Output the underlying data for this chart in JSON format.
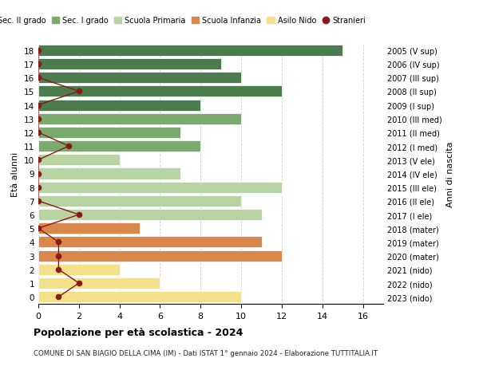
{
  "ages": [
    18,
    17,
    16,
    15,
    14,
    13,
    12,
    11,
    10,
    9,
    8,
    7,
    6,
    5,
    4,
    3,
    2,
    1,
    0
  ],
  "right_labels": [
    "2005 (V sup)",
    "2006 (IV sup)",
    "2007 (III sup)",
    "2008 (II sup)",
    "2009 (I sup)",
    "2010 (III med)",
    "2011 (II med)",
    "2012 (I med)",
    "2013 (V ele)",
    "2014 (IV ele)",
    "2015 (III ele)",
    "2016 (II ele)",
    "2017 (I ele)",
    "2018 (mater)",
    "2019 (mater)",
    "2020 (mater)",
    "2021 (nido)",
    "2022 (nido)",
    "2023 (nido)"
  ],
  "bar_values": [
    15,
    9,
    10,
    12,
    8,
    10,
    7,
    8,
    4,
    7,
    12,
    10,
    11,
    5,
    11,
    12,
    4,
    6,
    10
  ],
  "bar_colors": [
    "#4a7c4e",
    "#4a7c4e",
    "#4a7c4e",
    "#4a7c4e",
    "#4a7c4e",
    "#7aab6e",
    "#7aab6e",
    "#7aab6e",
    "#b8d4a0",
    "#b8d4a0",
    "#b8d4a0",
    "#b8d4a0",
    "#b8d4a0",
    "#d9874a",
    "#d9874a",
    "#d9874a",
    "#f5e08a",
    "#f5e08a",
    "#f5e08a"
  ],
  "stranieri_values": [
    0,
    0,
    0,
    2,
    0,
    0,
    0,
    1.5,
    0,
    0,
    0,
    0,
    2,
    0,
    1,
    1,
    1,
    2,
    1
  ],
  "stranieri_color": "#8b1a1a",
  "legend_items": [
    {
      "label": "Sec. II grado",
      "color": "#4a7c4e"
    },
    {
      "label": "Sec. I grado",
      "color": "#7aab6e"
    },
    {
      "label": "Scuola Primaria",
      "color": "#b8d4a0"
    },
    {
      "label": "Scuola Infanzia",
      "color": "#d9874a"
    },
    {
      "label": "Asilo Nido",
      "color": "#f5e08a"
    },
    {
      "label": "Stranieri",
      "color": "#8b1a1a"
    }
  ],
  "ylabel_left": "Età alunni",
  "ylabel_right": "Anni di nascita",
  "xlim": [
    0,
    17
  ],
  "xticks": [
    0,
    2,
    4,
    6,
    8,
    10,
    12,
    14,
    16
  ],
  "title": "Popolazione per età scolastica - 2024",
  "subtitle": "COMUNE DI SAN BIAGIO DELLA CIMA (IM) - Dati ISTAT 1° gennaio 2024 - Elaborazione TUTTITALIA.IT",
  "background_color": "#ffffff",
  "grid_color": "#d0d0d0"
}
